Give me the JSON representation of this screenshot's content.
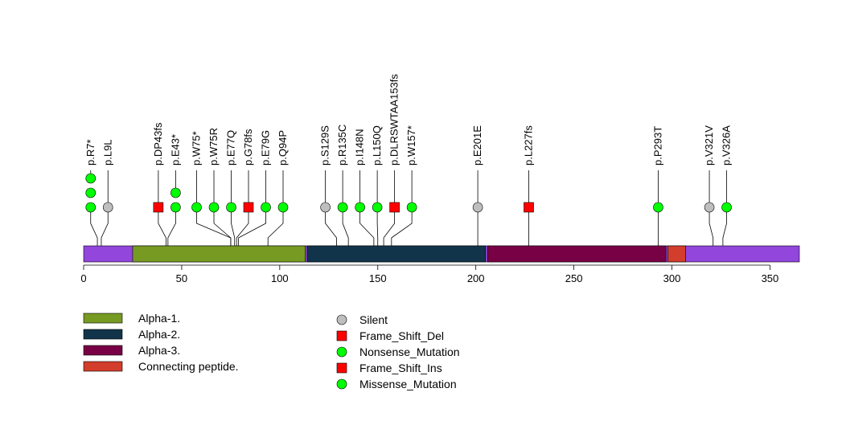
{
  "chart_data": {
    "type": "lollipop",
    "protein_length": 365,
    "xlim": [
      0,
      365
    ],
    "x_ticks": [
      0,
      50,
      100,
      150,
      200,
      250,
      300,
      350
    ],
    "background_domain_color": "#9246DB",
    "domains": [
      {
        "name": "Alpha-1.",
        "start": 25,
        "end": 113,
        "color": "#779A22"
      },
      {
        "name": "Alpha-2.",
        "start": 114,
        "end": 205,
        "color": "#12344A"
      },
      {
        "name": "Alpha-3.",
        "start": 206,
        "end": 297,
        "color": "#780146"
      },
      {
        "name": "Connecting peptide.",
        "start": 298,
        "end": 307,
        "color": "#D33D2B"
      }
    ],
    "mutations": [
      {
        "label": "p.R7*",
        "pos": 7,
        "types": [
          "Nonsense_Mutation",
          "Nonsense_Mutation",
          "Nonsense_Mutation"
        ]
      },
      {
        "label": "p.L9L",
        "pos": 9,
        "types": [
          "Silent"
        ]
      },
      {
        "label": "p.DP43fs",
        "pos": 42,
        "types": [
          "Frame_Shift_Del"
        ]
      },
      {
        "label": "p.E43*",
        "pos": 43,
        "types": [
          "Nonsense_Mutation",
          "Nonsense_Mutation"
        ]
      },
      {
        "label": "p.W75*",
        "pos": 75,
        "types": [
          "Nonsense_Mutation"
        ]
      },
      {
        "label": "p.W75R",
        "pos": 75,
        "types": [
          "Missense_Mutation"
        ]
      },
      {
        "label": "p.E77Q",
        "pos": 77,
        "types": [
          "Missense_Mutation"
        ]
      },
      {
        "label": "p.G78fs",
        "pos": 78,
        "types": [
          "Frame_Shift_Del"
        ]
      },
      {
        "label": "p.E79G",
        "pos": 79,
        "types": [
          "Missense_Mutation"
        ]
      },
      {
        "label": "p.Q94P",
        "pos": 94,
        "types": [
          "Missense_Mutation"
        ]
      },
      {
        "label": "p.S129S",
        "pos": 129,
        "types": [
          "Silent"
        ]
      },
      {
        "label": "p.R135C",
        "pos": 135,
        "types": [
          "Missense_Mutation"
        ]
      },
      {
        "label": "p.I148N",
        "pos": 148,
        "types": [
          "Missense_Mutation"
        ]
      },
      {
        "label": "p.L150Q",
        "pos": 150,
        "types": [
          "Missense_Mutation"
        ]
      },
      {
        "label": "p.DLRSWTAA153fs",
        "pos": 153,
        "types": [
          "Frame_Shift_Ins"
        ]
      },
      {
        "label": "p.W157*",
        "pos": 157,
        "types": [
          "Nonsense_Mutation"
        ]
      },
      {
        "label": "p.E201E",
        "pos": 201,
        "types": [
          "Silent"
        ]
      },
      {
        "label": "p.L227fs",
        "pos": 227,
        "types": [
          "Frame_Shift_Del"
        ]
      },
      {
        "label": "p.P293T",
        "pos": 293,
        "types": [
          "Missense_Mutation"
        ]
      },
      {
        "label": "p.V321V",
        "pos": 321,
        "types": [
          "Silent"
        ]
      },
      {
        "label": "p.V326A",
        "pos": 326,
        "types": [
          "Missense_Mutation"
        ]
      }
    ],
    "mutation_legend": [
      {
        "label": "Silent",
        "shape": "circle",
        "color": "#BEBEBE"
      },
      {
        "label": "Frame_Shift_Del",
        "shape": "square",
        "color": "#FF0000"
      },
      {
        "label": "Nonsense_Mutation",
        "shape": "circle",
        "color": "#00FF00"
      },
      {
        "label": "Frame_Shift_Ins",
        "shape": "square",
        "color": "#FF0000"
      },
      {
        "label": "Missense_Mutation",
        "shape": "circle",
        "color": "#00FF00"
      }
    ]
  }
}
